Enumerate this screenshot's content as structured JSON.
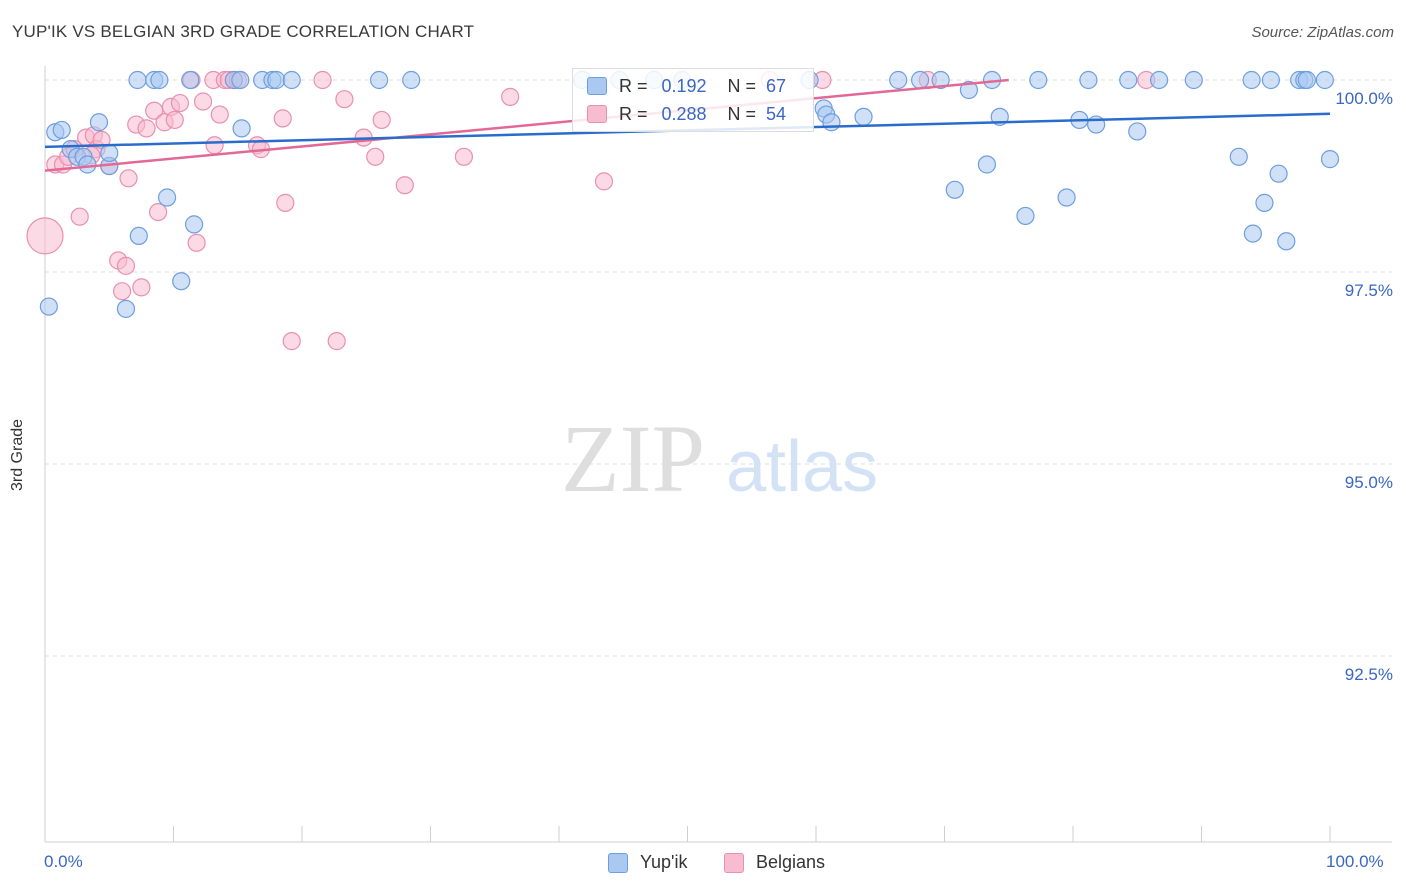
{
  "title": "YUP'IK VS BELGIAN 3RD GRADE CORRELATION CHART",
  "source": "Source: ZipAtlas.com",
  "watermark": {
    "zip": "ZIP",
    "atlas": "atlas"
  },
  "colors": {
    "yupik_fill": "#aac8f0",
    "yupik_stroke": "#6d9ee0",
    "yupik_line": "#2a6ccc",
    "belgian_fill": "#f7bcd0",
    "belgian_stroke": "#e98fb0",
    "belgian_line": "#e26995",
    "axis_label": "#3a66c4",
    "grid": "#dcdcdc"
  },
  "legend": {
    "rows": [
      {
        "r_label": "R =",
        "r_value": "0.192",
        "n_label": "N =",
        "n_value": "67"
      },
      {
        "r_label": "R =",
        "r_value": "0.288",
        "n_label": "N =",
        "n_value": "54"
      }
    ]
  },
  "bottom_legend": {
    "series1": "Yup'ik",
    "series2": "Belgians"
  },
  "chart_data": {
    "type": "scatter",
    "title": "YUP'IK VS BELGIAN 3RD GRADE CORRELATION CHART",
    "xlabel": "",
    "ylabel": "3rd Grade",
    "xlim": [
      0,
      100
    ],
    "ylim": [
      90.0,
      100.4
    ],
    "x_tick_labels": [
      "0.0%",
      "100.0%"
    ],
    "y_ticks": [
      100.0,
      97.5,
      95.0,
      92.5
    ],
    "y_tick_labels": [
      "100.0%",
      "97.5%",
      "95.0%",
      "92.5%"
    ],
    "grid": true,
    "series": [
      {
        "name": "Yup'ik",
        "r": 0.192,
        "n": 67,
        "trend": {
          "x": [
            0,
            100
          ],
          "y": [
            99.13,
            99.56
          ]
        },
        "points": [
          {
            "x": 0.3,
            "y": 97.05
          },
          {
            "x": 0.8,
            "y": 99.32
          },
          {
            "x": 1.3,
            "y": 99.35
          },
          {
            "x": 2.0,
            "y": 99.1
          },
          {
            "x": 2.5,
            "y": 99.0
          },
          {
            "x": 3.0,
            "y": 99.0
          },
          {
            "x": 3.3,
            "y": 98.9
          },
          {
            "x": 4.2,
            "y": 99.45
          },
          {
            "x": 5.0,
            "y": 98.88
          },
          {
            "x": 5.0,
            "y": 99.05
          },
          {
            "x": 6.3,
            "y": 97.02
          },
          {
            "x": 7.2,
            "y": 100.0
          },
          {
            "x": 7.3,
            "y": 97.97
          },
          {
            "x": 8.5,
            "y": 100.0
          },
          {
            "x": 8.9,
            "y": 100.0
          },
          {
            "x": 9.5,
            "y": 98.47
          },
          {
            "x": 10.6,
            "y": 97.38
          },
          {
            "x": 11.3,
            "y": 100.0
          },
          {
            "x": 11.6,
            "y": 98.12
          },
          {
            "x": 14.7,
            "y": 100.0
          },
          {
            "x": 15.2,
            "y": 100.0
          },
          {
            "x": 15.3,
            "y": 99.37
          },
          {
            "x": 16.9,
            "y": 100.0
          },
          {
            "x": 17.7,
            "y": 100.0
          },
          {
            "x": 18.0,
            "y": 100.0
          },
          {
            "x": 19.2,
            "y": 100.0
          },
          {
            "x": 26.0,
            "y": 100.0
          },
          {
            "x": 28.5,
            "y": 100.0
          },
          {
            "x": 41.8,
            "y": 100.0
          },
          {
            "x": 44.7,
            "y": 100.0
          },
          {
            "x": 47.4,
            "y": 100.0
          },
          {
            "x": 49.6,
            "y": 100.0
          },
          {
            "x": 59.5,
            "y": 100.0
          },
          {
            "x": 60.6,
            "y": 99.63
          },
          {
            "x": 60.8,
            "y": 99.55
          },
          {
            "x": 61.2,
            "y": 99.45
          },
          {
            "x": 63.7,
            "y": 99.52
          },
          {
            "x": 66.4,
            "y": 100.0
          },
          {
            "x": 68.1,
            "y": 100.0
          },
          {
            "x": 69.7,
            "y": 100.0
          },
          {
            "x": 70.8,
            "y": 98.57
          },
          {
            "x": 71.9,
            "y": 99.87
          },
          {
            "x": 73.3,
            "y": 98.9
          },
          {
            "x": 73.7,
            "y": 100.0
          },
          {
            "x": 74.3,
            "y": 99.52
          },
          {
            "x": 76.3,
            "y": 98.23
          },
          {
            "x": 77.3,
            "y": 100.0
          },
          {
            "x": 79.5,
            "y": 98.47
          },
          {
            "x": 80.5,
            "y": 99.48
          },
          {
            "x": 81.2,
            "y": 100.0
          },
          {
            "x": 81.8,
            "y": 99.42
          },
          {
            "x": 84.3,
            "y": 100.0
          },
          {
            "x": 85.0,
            "y": 99.33
          },
          {
            "x": 86.7,
            "y": 100.0
          },
          {
            "x": 89.4,
            "y": 100.0
          },
          {
            "x": 92.9,
            "y": 99.0
          },
          {
            "x": 93.9,
            "y": 100.0
          },
          {
            "x": 94.0,
            "y": 98.0
          },
          {
            "x": 94.9,
            "y": 98.4
          },
          {
            "x": 95.4,
            "y": 100.0
          },
          {
            "x": 96.0,
            "y": 98.78
          },
          {
            "x": 96.6,
            "y": 97.9
          },
          {
            "x": 97.6,
            "y": 100.0
          },
          {
            "x": 98.0,
            "y": 100.0
          },
          {
            "x": 98.2,
            "y": 100.0
          },
          {
            "x": 99.6,
            "y": 100.0
          },
          {
            "x": 100.0,
            "y": 98.97
          }
        ]
      },
      {
        "name": "Belgians",
        "r": 0.288,
        "n": 54,
        "trend": {
          "x": [
            0,
            75
          ],
          "y": [
            98.82,
            100.0
          ]
        },
        "points": [
          {
            "x": 0.0,
            "y": 97.97,
            "size": "large"
          },
          {
            "x": 0.8,
            "y": 98.9
          },
          {
            "x": 1.4,
            "y": 98.9
          },
          {
            "x": 1.8,
            "y": 99.0
          },
          {
            "x": 2.3,
            "y": 99.1
          },
          {
            "x": 2.7,
            "y": 98.22
          },
          {
            "x": 3.2,
            "y": 99.25
          },
          {
            "x": 3.8,
            "y": 99.28
          },
          {
            "x": 4.0,
            "y": 99.1
          },
          {
            "x": 4.4,
            "y": 99.22
          },
          {
            "x": 5.0,
            "y": 98.88
          },
          {
            "x": 5.7,
            "y": 97.65
          },
          {
            "x": 6.0,
            "y": 97.25
          },
          {
            "x": 6.3,
            "y": 97.58
          },
          {
            "x": 6.5,
            "y": 98.72
          },
          {
            "x": 7.1,
            "y": 99.42
          },
          {
            "x": 7.5,
            "y": 97.3
          },
          {
            "x": 7.9,
            "y": 99.37
          },
          {
            "x": 8.5,
            "y": 99.6
          },
          {
            "x": 8.8,
            "y": 98.28
          },
          {
            "x": 9.3,
            "y": 99.45
          },
          {
            "x": 9.8,
            "y": 99.65
          },
          {
            "x": 10.1,
            "y": 99.48
          },
          {
            "x": 10.5,
            "y": 99.7
          },
          {
            "x": 11.4,
            "y": 100.0
          },
          {
            "x": 11.8,
            "y": 97.88
          },
          {
            "x": 12.3,
            "y": 99.72
          },
          {
            "x": 13.1,
            "y": 100.0
          },
          {
            "x": 13.2,
            "y": 99.15
          },
          {
            "x": 13.6,
            "y": 99.55
          },
          {
            "x": 14.0,
            "y": 100.0
          },
          {
            "x": 14.3,
            "y": 100.0
          },
          {
            "x": 14.7,
            "y": 100.0
          },
          {
            "x": 16.5,
            "y": 99.15
          },
          {
            "x": 16.8,
            "y": 99.1
          },
          {
            "x": 18.5,
            "y": 99.5
          },
          {
            "x": 18.7,
            "y": 98.4
          },
          {
            "x": 19.2,
            "y": 96.6
          },
          {
            "x": 21.6,
            "y": 100.0
          },
          {
            "x": 22.7,
            "y": 96.6
          },
          {
            "x": 23.3,
            "y": 99.75
          },
          {
            "x": 24.8,
            "y": 99.25
          },
          {
            "x": 25.7,
            "y": 99.0
          },
          {
            "x": 26.2,
            "y": 99.48
          },
          {
            "x": 28.0,
            "y": 98.63
          },
          {
            "x": 32.6,
            "y": 99.0
          },
          {
            "x": 36.2,
            "y": 99.78
          },
          {
            "x": 43.5,
            "y": 98.68
          },
          {
            "x": 56.4,
            "y": 100.0
          },
          {
            "x": 60.5,
            "y": 100.0
          },
          {
            "x": 68.7,
            "y": 100.0
          },
          {
            "x": 85.7,
            "y": 100.0
          },
          {
            "x": 15.0,
            "y": 100.0
          },
          {
            "x": 3.6,
            "y": 99.02
          }
        ]
      }
    ]
  }
}
